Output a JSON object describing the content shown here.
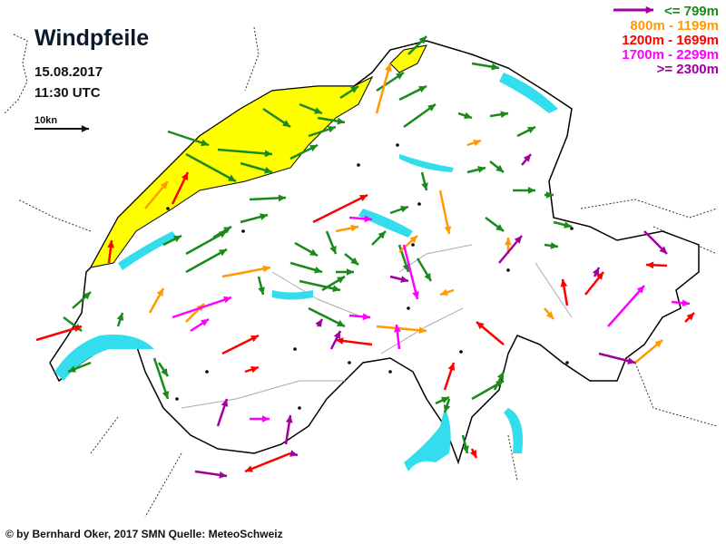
{
  "header": {
    "title": "Windpfeile",
    "date": "15.08.2017",
    "time": "11:30 UTC",
    "scale_label": "10kn"
  },
  "legend": [
    {
      "label": "<=   799m",
      "color": "#1a8a1a"
    },
    {
      "label": "800m - 1199m",
      "color": "#ff9a00"
    },
    {
      "label": "1200m - 1699m",
      "color": "#ff0000"
    },
    {
      "label": "1700m - 2299m",
      "color": "#ff00ff"
    },
    {
      "label": ">= 2300m",
      "color": "#a000a0"
    }
  ],
  "footer": "© by Bernhard Oker, 2017  SMN Quelle: MeteoSchweiz",
  "colors": {
    "lakes": "#33ddee",
    "jura_highlight": "#ffff00",
    "border": "#000000"
  }
}
